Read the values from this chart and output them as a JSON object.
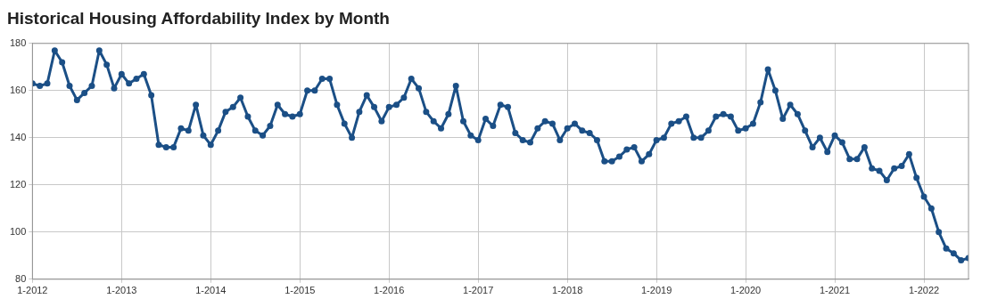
{
  "chart_data": {
    "type": "line",
    "title": "Historical Housing Affordability Index by Month",
    "x": [
      "2012-01",
      "2012-02",
      "2012-03",
      "2012-04",
      "2012-05",
      "2012-06",
      "2012-07",
      "2012-08",
      "2012-09",
      "2012-10",
      "2012-11",
      "2012-12",
      "2013-01",
      "2013-02",
      "2013-03",
      "2013-04",
      "2013-05",
      "2013-06",
      "2013-07",
      "2013-08",
      "2013-09",
      "2013-10",
      "2013-11",
      "2013-12",
      "2014-01",
      "2014-02",
      "2014-03",
      "2014-04",
      "2014-05",
      "2014-06",
      "2014-07",
      "2014-08",
      "2014-09",
      "2014-10",
      "2014-11",
      "2014-12",
      "2015-01",
      "2015-02",
      "2015-03",
      "2015-04",
      "2015-05",
      "2015-06",
      "2015-07",
      "2015-08",
      "2015-09",
      "2015-10",
      "2015-11",
      "2015-12",
      "2016-01",
      "2016-02",
      "2016-03",
      "2016-04",
      "2016-05",
      "2016-06",
      "2016-07",
      "2016-08",
      "2016-09",
      "2016-10",
      "2016-11",
      "2016-12",
      "2017-01",
      "2017-02",
      "2017-03",
      "2017-04",
      "2017-05",
      "2017-06",
      "2017-07",
      "2017-08",
      "2017-09",
      "2017-10",
      "2017-11",
      "2017-12",
      "2018-01",
      "2018-02",
      "2018-03",
      "2018-04",
      "2018-05",
      "2018-06",
      "2018-07",
      "2018-08",
      "2018-09",
      "2018-10",
      "2018-11",
      "2018-12",
      "2019-01",
      "2019-02",
      "2019-03",
      "2019-04",
      "2019-05",
      "2019-06",
      "2019-07",
      "2019-08",
      "2019-09",
      "2019-10",
      "2019-11",
      "2019-12",
      "2020-01",
      "2020-02",
      "2020-03",
      "2020-04",
      "2020-05",
      "2020-06",
      "2020-07",
      "2020-08",
      "2020-09",
      "2020-10",
      "2020-11",
      "2020-12",
      "2021-01",
      "2021-02",
      "2021-03",
      "2021-04",
      "2021-05",
      "2021-06",
      "2021-07",
      "2021-08",
      "2021-09",
      "2021-10",
      "2021-11",
      "2021-12",
      "2022-01",
      "2022-02",
      "2022-03",
      "2022-04",
      "2022-05",
      "2022-06",
      "2022-07"
    ],
    "series": [
      {
        "color": "#1b4f86",
        "values": [
          163,
          162,
          163,
          177,
          172,
          162,
          156,
          159,
          162,
          177,
          171,
          161,
          167,
          163,
          165,
          167,
          158,
          137,
          136,
          136,
          144,
          143,
          154,
          141,
          137,
          143,
          151,
          153,
          157,
          149,
          143,
          141,
          145,
          154,
          150,
          149,
          150,
          160,
          160,
          165,
          165,
          154,
          146,
          140,
          151,
          158,
          153,
          147,
          153,
          154,
          157,
          165,
          161,
          151,
          147,
          144,
          150,
          162,
          147,
          141,
          139,
          148,
          145,
          154,
          153,
          142,
          139,
          138,
          144,
          147,
          146,
          139,
          144,
          146,
          143,
          142,
          139,
          130,
          130,
          132,
          135,
          136,
          130,
          133,
          139,
          140,
          146,
          147,
          149,
          140,
          140,
          143,
          149,
          150,
          149,
          143,
          144,
          146,
          155,
          169,
          160,
          148,
          154,
          150,
          143,
          136,
          140,
          134,
          141,
          138,
          131,
          131,
          136,
          127,
          126,
          122,
          127,
          128,
          133,
          123,
          115,
          110,
          100,
          93,
          91,
          88,
          89
        ]
      }
    ],
    "xlim": [
      "2012-01",
      "2022-07"
    ],
    "xticks": [
      {
        "value": "2012-01",
        "label": "1-2012"
      },
      {
        "value": "2013-01",
        "label": "1-2013"
      },
      {
        "value": "2014-01",
        "label": "1-2014"
      },
      {
        "value": "2015-01",
        "label": "1-2015"
      },
      {
        "value": "2016-01",
        "label": "1-2016"
      },
      {
        "value": "2017-01",
        "label": "1-2017"
      },
      {
        "value": "2018-01",
        "label": "1-2018"
      },
      {
        "value": "2019-01",
        "label": "1-2019"
      },
      {
        "value": "2020-01",
        "label": "1-2020"
      },
      {
        "value": "2021-01",
        "label": "1-2021"
      },
      {
        "value": "2022-01",
        "label": "1-2022"
      }
    ],
    "ylim": [
      80,
      180
    ],
    "yticks": [
      80,
      100,
      120,
      140,
      160,
      180
    ],
    "grid": true,
    "legend": false,
    "marker": "circle",
    "line_style": "solid"
  }
}
